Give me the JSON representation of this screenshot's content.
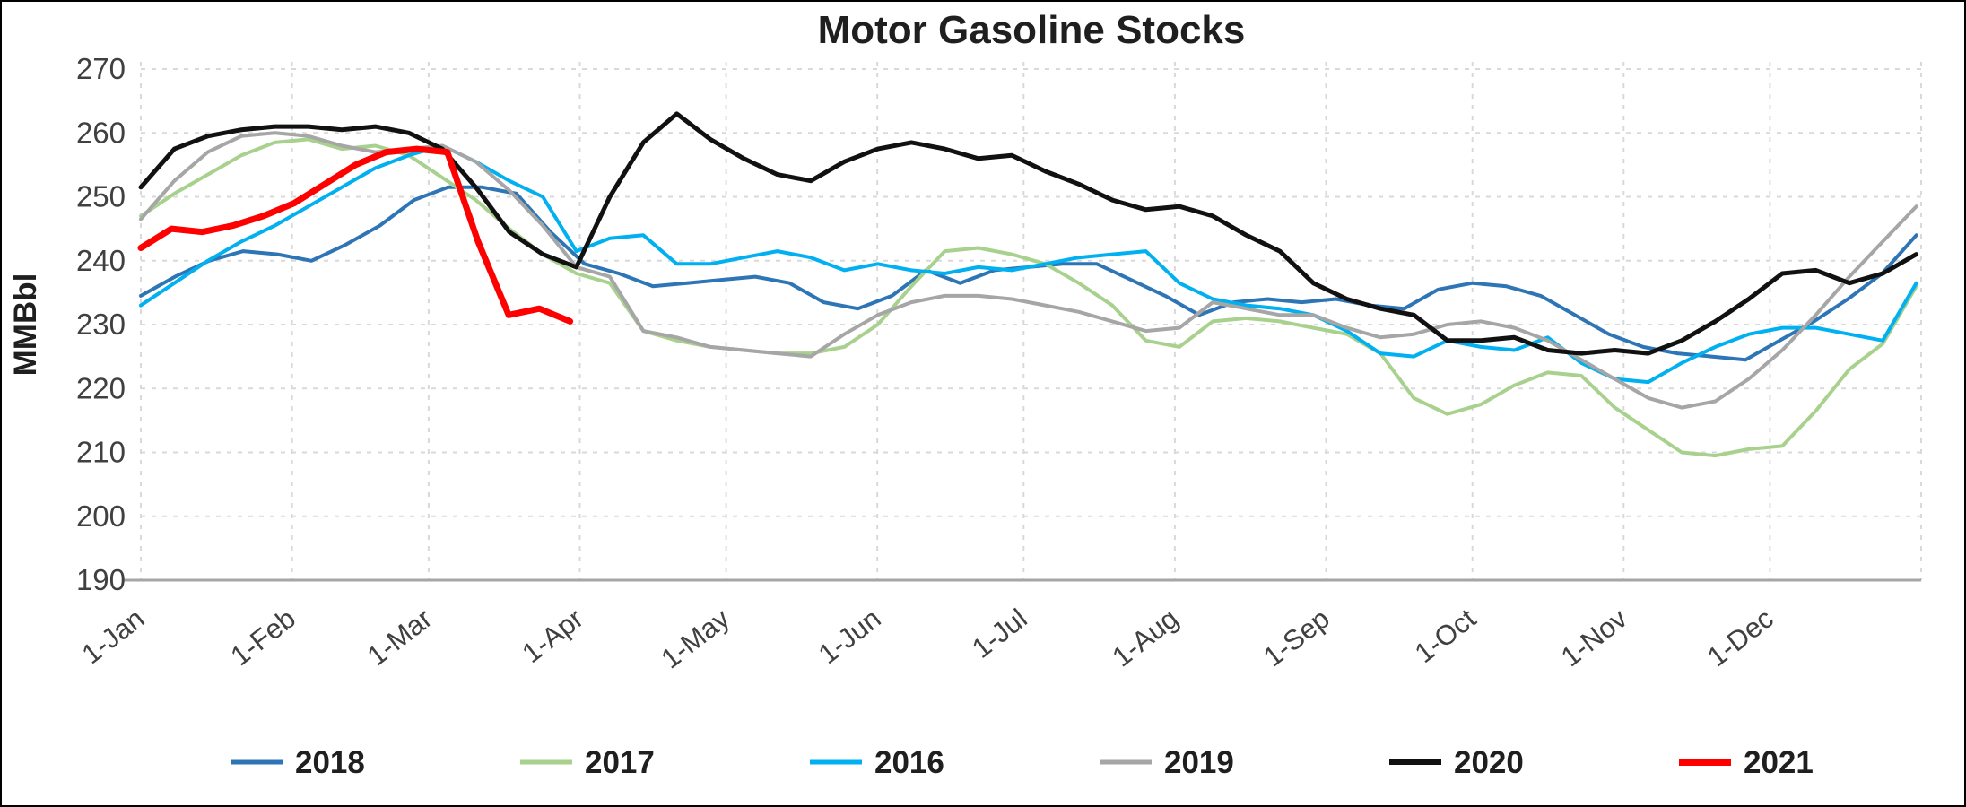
{
  "page": {
    "background": "#ffffff",
    "border_color": "#000000"
  },
  "chart_data": {
    "type": "line",
    "title": "Motor Gasoline Stocks",
    "ylabel": "MMBbl",
    "ylim": [
      190,
      270
    ],
    "yticks": [
      190,
      200,
      210,
      220,
      230,
      240,
      250,
      260,
      270
    ],
    "xtick_labels": [
      "1-Jan",
      "1-Feb",
      "1-Mar",
      "1-Apr",
      "1-May",
      "1-Jun",
      "1-Jul",
      "1-Aug",
      "1-Sep",
      "1-Oct",
      "1-Nov",
      "1-Dec"
    ],
    "xtick_days": [
      0,
      31,
      59,
      90,
      120,
      151,
      181,
      212,
      243,
      273,
      304,
      334
    ],
    "x_domain_days": [
      0,
      365
    ],
    "grid": "dashed",
    "grid_color": "#d9d9d9",
    "axis_line_color": "#a6a6a6",
    "axis_text_color": "#404040",
    "title_color": "#1f1f1f",
    "legend_position": "bottom",
    "series": [
      {
        "name": "2018",
        "color": "#2E75B6",
        "width": 4,
        "start_day": 0,
        "end_day": 364,
        "values": [
          234.5,
          237.5,
          240,
          241.5,
          241,
          240,
          242.5,
          245.5,
          249.5,
          251.5,
          251.5,
          250.5,
          244.5,
          239.5,
          238,
          236,
          236.5,
          237,
          237.5,
          236.5,
          233.5,
          232.5,
          234.5,
          238.5,
          236.5,
          238.5,
          239,
          239.5,
          239.5,
          237,
          234.5,
          231.5,
          233.5,
          234,
          233.5,
          234,
          233,
          232.5,
          235.5,
          236.5,
          236,
          234.5,
          231.5,
          228.5,
          226.5,
          225.5,
          225,
          224.5,
          227.5,
          230.5,
          234,
          238,
          244
        ]
      },
      {
        "name": "2017",
        "color": "#A9D18E",
        "width": 4,
        "start_day": 0,
        "end_day": 364,
        "values": [
          247,
          250.5,
          253.5,
          256.5,
          258.5,
          259,
          257.5,
          258,
          256.5,
          253,
          249.5,
          245,
          241,
          238,
          236.5,
          229,
          227.5,
          226.5,
          226,
          225.5,
          225.5,
          226.5,
          230,
          236,
          241.5,
          242,
          241,
          239.5,
          236.5,
          233,
          227.5,
          226.5,
          230.5,
          231,
          230.5,
          229.5,
          228.5,
          225.5,
          218.5,
          216,
          217.5,
          220.5,
          222.5,
          222,
          217,
          213.5,
          210,
          209.5,
          210.5,
          211,
          216.5,
          223,
          227,
          236
        ]
      },
      {
        "name": "2016",
        "color": "#00B0F0",
        "width": 4,
        "start_day": 0,
        "end_day": 364,
        "values": [
          233,
          236.5,
          240,
          243,
          245.5,
          248.5,
          251.5,
          254.5,
          256.5,
          258,
          255.5,
          252.5,
          250,
          241.5,
          243.5,
          244,
          239.5,
          239.5,
          240.5,
          241.5,
          240.5,
          238.5,
          239.5,
          238.5,
          238,
          239,
          238.5,
          239.5,
          240.5,
          241,
          241.5,
          236.5,
          234,
          233,
          232.5,
          231.5,
          229,
          225.5,
          225,
          227.5,
          226.5,
          226,
          228,
          224,
          221.5,
          221,
          224,
          226.5,
          228.5,
          229.5,
          229.5,
          228.5,
          227.5,
          236.5
        ]
      },
      {
        "name": "2019",
        "color": "#A6A6A6",
        "width": 4,
        "start_day": 0,
        "end_day": 364,
        "values": [
          246.5,
          252.5,
          257,
          259.5,
          260,
          259.5,
          258,
          257,
          257.5,
          258,
          255.5,
          251,
          245.5,
          239,
          237.5,
          229,
          228,
          226.5,
          226,
          225.5,
          225,
          228.5,
          231.5,
          233.5,
          234.5,
          234.5,
          234,
          233,
          232,
          230.5,
          229,
          229.5,
          233.5,
          232.5,
          231.5,
          231.5,
          229.5,
          228,
          228.5,
          230,
          230.5,
          229.5,
          227.5,
          224.5,
          221.5,
          218.5,
          217,
          218,
          221.5,
          226,
          231.5,
          237.5,
          243,
          248.5
        ]
      },
      {
        "name": "2020",
        "color": "#111111",
        "width": 5,
        "start_day": 0,
        "end_day": 364,
        "values": [
          251.5,
          257.5,
          259.5,
          260.5,
          261,
          261,
          260.5,
          261,
          260,
          257.5,
          251.5,
          244.5,
          241,
          239,
          250,
          258.5,
          263,
          259,
          256,
          253.5,
          252.5,
          255.5,
          257.5,
          258.5,
          257.5,
          256,
          256.5,
          254,
          252,
          249.5,
          248,
          248.5,
          247,
          244,
          241.5,
          236.5,
          234,
          232.5,
          231.5,
          227.5,
          227.5,
          228,
          226,
          225.5,
          226,
          225.5,
          227.5,
          230.5,
          234,
          238,
          238.5,
          236.5,
          238,
          241
        ]
      },
      {
        "name": "2021",
        "color": "#FF0000",
        "width": 7,
        "start_day": 0,
        "end_day": 88,
        "values": [
          242,
          245,
          244.5,
          245.5,
          247,
          249,
          252,
          255,
          257,
          257.5,
          257,
          243,
          231.5,
          232.5,
          230.5
        ]
      }
    ]
  }
}
